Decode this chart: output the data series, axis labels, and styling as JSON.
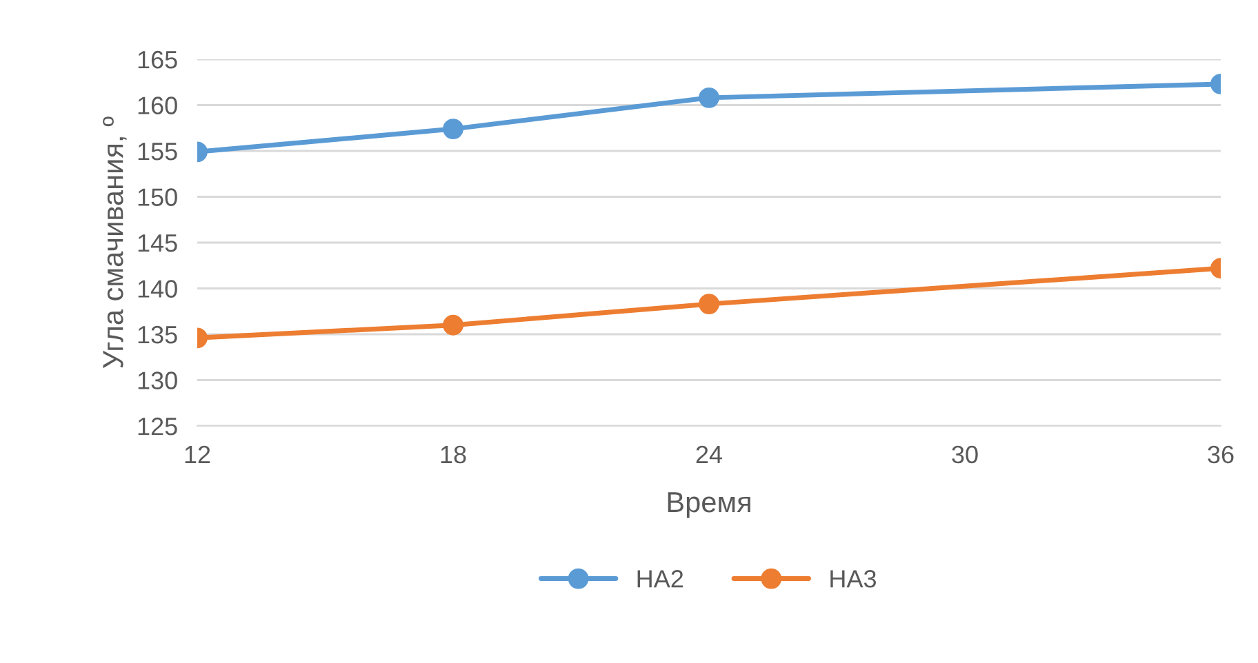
{
  "chart_data": {
    "type": "line",
    "xlabel": "Время",
    "ylabel": "Угла смачивания, º",
    "series": [
      {
        "name": "HA2",
        "color": "#5b9bd5",
        "x": [
          12,
          18,
          24,
          36
        ],
        "values": [
          154.9,
          157.4,
          160.8,
          162.3
        ]
      },
      {
        "name": "HA3",
        "color": "#ed7d31",
        "x": [
          12,
          18,
          24,
          36
        ],
        "values": [
          134.6,
          136.0,
          138.3,
          142.2
        ]
      }
    ],
    "xlim": [
      12,
      36
    ],
    "xticks": [
      12,
      18,
      24,
      30,
      36
    ],
    "ylim": [
      125,
      165
    ],
    "yticks": [
      125,
      130,
      135,
      140,
      145,
      150,
      155,
      160,
      165
    ],
    "grid": "y",
    "legend": "bottom",
    "marker": "circle",
    "line_style": "solid"
  }
}
